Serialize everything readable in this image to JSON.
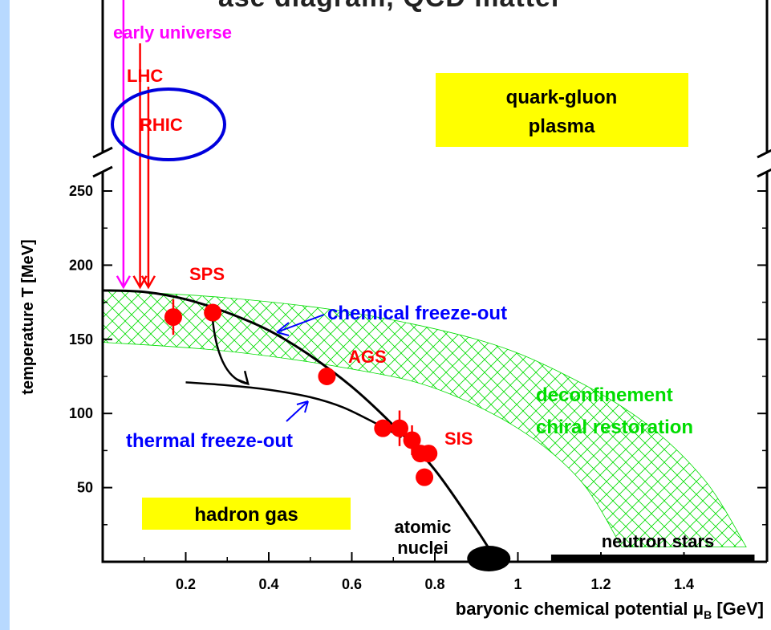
{
  "chart_data": {
    "type": "scatter",
    "title_fragment": "ase diagram, QCD matter",
    "xlabel": "baryonic chemical potential μ",
    "xlabel_sub": "B",
    "xlabel_unit": " [GeV]",
    "ylabel": "temperature T [MeV]",
    "xlim": [
      0,
      1.6
    ],
    "ylim": [
      0,
      260
    ],
    "x_ticks": [
      0.2,
      0.4,
      0.6,
      0.8,
      1,
      1.2,
      1.4
    ],
    "x_tick_labels": [
      "0.2",
      "0.4",
      "0.6",
      "0.8",
      "1",
      "1.2",
      "1.4"
    ],
    "y_ticks": [
      50,
      100,
      150,
      200,
      250
    ],
    "y_tick_labels": [
      "50",
      "100",
      "150",
      "200",
      "250"
    ],
    "experiments": [
      {
        "name": "SPS",
        "x": 0.17,
        "y": 165,
        "xerr": 0.01,
        "yerr": 12
      },
      {
        "name": "SPS",
        "x": 0.265,
        "y": 168,
        "xerr": 0.0,
        "yerr": 0
      },
      {
        "name": "AGS",
        "x": 0.54,
        "y": 125,
        "xerr": 0.0,
        "yerr": 0
      },
      {
        "name": "SIS",
        "x": 0.675,
        "y": 90,
        "xerr": 0.0,
        "yerr": 0
      },
      {
        "name": "SIS",
        "x": 0.715,
        "y": 90,
        "xerr": 0.0,
        "yerr": 12
      },
      {
        "name": "SIS",
        "x": 0.745,
        "y": 82,
        "xerr": 0.02,
        "yerr": 10
      },
      {
        "name": "SIS",
        "x": 0.765,
        "y": 73,
        "xerr": 0.0,
        "yerr": 0
      },
      {
        "name": "SIS",
        "x": 0.785,
        "y": 73,
        "xerr": 0.02,
        "yerr": 0
      },
      {
        "name": "SIS",
        "x": 0.775,
        "y": 57,
        "xerr": 0.0,
        "yerr": 0
      }
    ],
    "chemical_freezeout_curve": [
      [
        0,
        183
      ],
      [
        0.1,
        182
      ],
      [
        0.2,
        177
      ],
      [
        0.3,
        168
      ],
      [
        0.4,
        156
      ],
      [
        0.5,
        139
      ],
      [
        0.6,
        118
      ],
      [
        0.7,
        92
      ],
      [
        0.8,
        62
      ],
      [
        0.9,
        22
      ],
      [
        0.95,
        0
      ]
    ],
    "thermal_freezeout_curve": [
      [
        0.2,
        121
      ],
      [
        0.3,
        119
      ],
      [
        0.4,
        116
      ],
      [
        0.5,
        111
      ],
      [
        0.58,
        104
      ],
      [
        0.66,
        93
      ],
      [
        0.72,
        84
      ]
    ],
    "band_upper": [
      [
        0,
        183
      ],
      [
        0.3,
        178
      ],
      [
        0.6,
        168
      ],
      [
        0.9,
        150
      ],
      [
        1.1,
        128
      ],
      [
        1.3,
        95
      ],
      [
        1.45,
        55
      ],
      [
        1.55,
        10
      ]
    ],
    "band_lower": [
      [
        0,
        148
      ],
      [
        0.3,
        142
      ],
      [
        0.6,
        130
      ],
      [
        0.8,
        117
      ],
      [
        1.0,
        90
      ],
      [
        1.15,
        55
      ],
      [
        1.25,
        10
      ]
    ],
    "arrows": [
      {
        "name": "early universe",
        "x": 0.05,
        "color": "#ff00ff"
      },
      {
        "name": "LHC",
        "x": 0.09,
        "color": "#ff0000"
      },
      {
        "name": "RHIC",
        "x": 0.11,
        "color": "#ff0000"
      }
    ],
    "labels": {
      "early_universe": "early universe",
      "lhc": "LHC",
      "rhic": "RHIC",
      "qgp_line1": "quark-gluon",
      "qgp_line2": "plasma",
      "sps": "SPS",
      "ags": "AGS",
      "sis": "SIS",
      "chemical_freezeout": "chemical freeze-out",
      "thermal_freezeout": "thermal freeze-out",
      "deconfinement": "deconfinement",
      "chiral_restoration": "chiral restoration",
      "hadron_gas": "hadron gas",
      "atomic": "atomic",
      "nuclei": "nuclei",
      "neutron_stars": "neutron stars"
    },
    "colors": {
      "experiment": "#ff0000",
      "early_universe": "#ff00ff",
      "freezeout_label": "#0000ff",
      "band": "#00dd00",
      "highlight": "#ffff00",
      "circle": "#0000dd"
    }
  }
}
